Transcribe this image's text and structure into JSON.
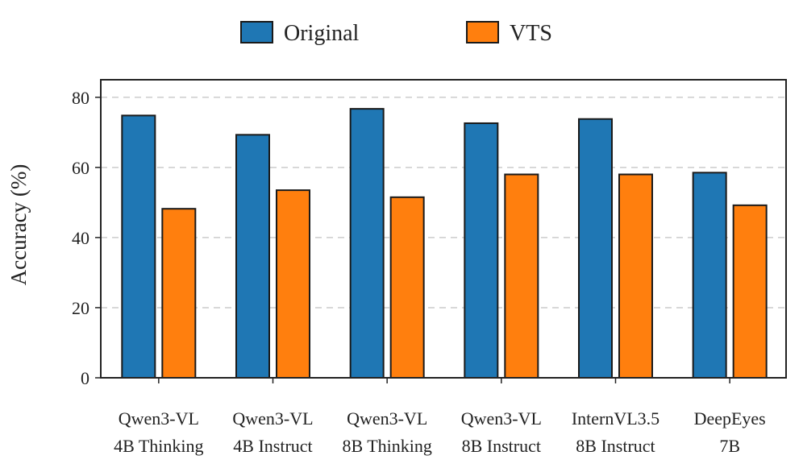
{
  "chart_data": {
    "type": "bar",
    "ylabel": "Accuracy (%)",
    "xlabel": "",
    "ylim": [
      0,
      85
    ],
    "yticks": [
      0,
      20,
      40,
      60,
      80
    ],
    "grid": "horizontal dashed",
    "legend_position": "top-center",
    "categories": [
      [
        "Qwen3-VL",
        "4B Thinking"
      ],
      [
        "Qwen3-VL",
        "4B Instruct"
      ],
      [
        "Qwen3-VL",
        "8B Thinking"
      ],
      [
        "Qwen3-VL",
        "8B Instruct"
      ],
      [
        "InternVL3.5",
        "8B Instruct"
      ],
      [
        "DeepEyes",
        "7B"
      ]
    ],
    "series": [
      {
        "name": "Original",
        "color": "#1f77b4",
        "values": [
          74.8,
          69.3,
          76.7,
          72.6,
          73.8,
          58.5
        ]
      },
      {
        "name": "VTS",
        "color": "#ff7f0e",
        "values": [
          48.2,
          53.5,
          51.5,
          58.0,
          58.0,
          49.2
        ]
      }
    ]
  }
}
